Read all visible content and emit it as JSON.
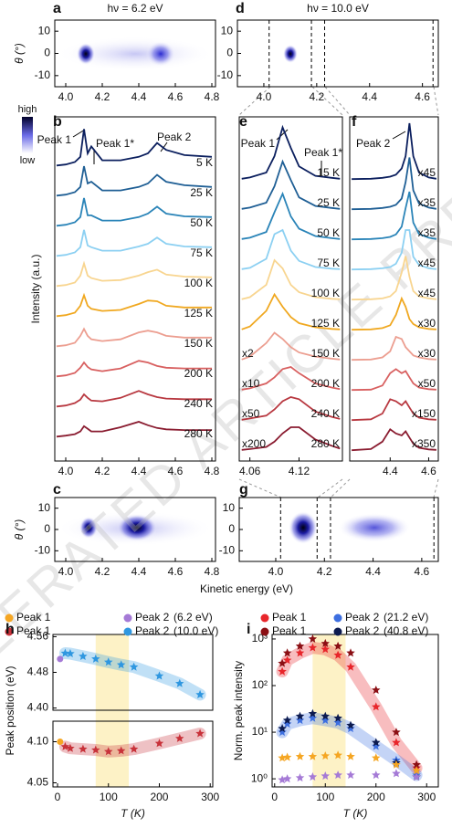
{
  "watermark": "ACCELERATED ARTICLE PREVIEW",
  "colorbar": {
    "high": "high",
    "low": "low"
  },
  "chart_data": [
    {
      "type": "heatmap",
      "label": "a",
      "title": "hν = 6.2 eV",
      "ylabel": "θ (°)",
      "xlim": [
        3.94,
        4.82
      ],
      "xticks": [
        {
          "value": 4,
          "label": "4.0"
        },
        4.2,
        4.4,
        4.6,
        4.8
      ],
      "ylim": [
        -15,
        15
      ],
      "yticks": [
        10,
        0,
        -10
      ]
    },
    {
      "type": "heatmap",
      "label": "d",
      "title": "hν = 10.0 eV",
      "xlim": [
        3.9,
        4.66
      ],
      "xticks": [
        {
          "value": 4,
          "label": "4.0"
        },
        4.2,
        4.4,
        4.6
      ],
      "ylim": [
        -15,
        15
      ],
      "yticks": [
        10,
        0,
        -10
      ],
      "cut_lines": [
        4.02,
        4.18,
        4.23,
        4.64
      ]
    },
    {
      "type": "line",
      "label": "b",
      "ylabel": "Intensity (a.u.)",
      "xlim": [
        3.94,
        4.82
      ],
      "xticks": [
        {
          "value": 4,
          "label": "4.0"
        },
        4.2,
        4.4,
        4.6,
        4.8
      ],
      "annotations": [
        "Peak 1",
        "Peak 1*",
        "Peak 2"
      ],
      "x": [
        3.95,
        4.0,
        4.05,
        4.08,
        4.1,
        4.12,
        4.14,
        4.2,
        4.3,
        4.4,
        4.45,
        4.5,
        4.55,
        4.65,
        4.8
      ],
      "series": [
        {
          "name": "5 K",
          "color": "#0b1f5e",
          "values": [
            0.15,
            0.18,
            0.25,
            0.4,
            1.2,
            0.5,
            0.7,
            0.3,
            0.3,
            0.4,
            0.5,
            0.8,
            0.6,
            0.45,
            0.4
          ]
        },
        {
          "name": "25 K",
          "color": "#1f5f95",
          "values": [
            0.15,
            0.18,
            0.25,
            0.4,
            1.0,
            0.5,
            0.55,
            0.3,
            0.3,
            0.4,
            0.5,
            0.75,
            0.55,
            0.45,
            0.4
          ]
        },
        {
          "name": "50 K",
          "color": "#2a84b8",
          "values": [
            0.15,
            0.18,
            0.25,
            0.4,
            0.95,
            0.45,
            0.45,
            0.3,
            0.3,
            0.4,
            0.5,
            0.7,
            0.5,
            0.42,
            0.4
          ]
        },
        {
          "name": "75 K",
          "color": "#8cd0f2",
          "values": [
            0.15,
            0.18,
            0.25,
            0.4,
            0.9,
            0.45,
            0.4,
            0.3,
            0.3,
            0.42,
            0.5,
            0.68,
            0.5,
            0.42,
            0.4
          ]
        },
        {
          "name": "100 K",
          "color": "#f8d590",
          "values": [
            0.15,
            0.18,
            0.25,
            0.45,
            0.8,
            0.45,
            0.38,
            0.3,
            0.32,
            0.45,
            0.55,
            0.62,
            0.48,
            0.42,
            0.4
          ]
        },
        {
          "name": "125 K",
          "color": "#f0a820",
          "values": [
            0.15,
            0.18,
            0.25,
            0.45,
            0.75,
            0.45,
            0.36,
            0.3,
            0.33,
            0.5,
            0.6,
            0.58,
            0.45,
            0.4,
            0.4
          ]
        },
        {
          "name": "150 K",
          "color": "#ec9e90",
          "values": [
            0.15,
            0.18,
            0.25,
            0.45,
            0.65,
            0.45,
            0.35,
            0.3,
            0.35,
            0.55,
            0.6,
            0.55,
            0.45,
            0.4,
            0.4
          ]
        },
        {
          "name": "200 K",
          "color": "#d86060",
          "values": [
            0.15,
            0.18,
            0.25,
            0.4,
            0.55,
            0.42,
            0.35,
            0.3,
            0.38,
            0.6,
            0.55,
            0.45,
            0.4,
            0.38,
            0.38
          ]
        },
        {
          "name": "240 K",
          "color": "#b83840",
          "values": [
            0.15,
            0.18,
            0.25,
            0.35,
            0.5,
            0.4,
            0.32,
            0.3,
            0.4,
            0.6,
            0.5,
            0.42,
            0.38,
            0.36,
            0.36
          ]
        },
        {
          "name": "280 K",
          "color": "#8a1c30",
          "values": [
            0.15,
            0.18,
            0.22,
            0.3,
            0.45,
            0.38,
            0.3,
            0.3,
            0.42,
            0.58,
            0.48,
            0.4,
            0.36,
            0.34,
            0.34
          ]
        }
      ]
    },
    {
      "type": "line",
      "label": "e",
      "xlim": [
        4.047,
        4.173
      ],
      "xticks": [
        4.06,
        4.12
      ],
      "annotations": [
        "Peak 1",
        "Peak 1*"
      ],
      "x": [
        4.05,
        4.06,
        4.08,
        4.09,
        4.1,
        4.11,
        4.12,
        4.14,
        4.16,
        4.17
      ],
      "series": [
        {
          "name": "15 K",
          "color": "#0b1f5e",
          "values": [
            0.05,
            0.08,
            0.2,
            0.6,
            1.3,
            0.8,
            0.35,
            0.12,
            0.07,
            0.05
          ]
        },
        {
          "name": "25 K",
          "color": "#1f5f95",
          "values": [
            0.05,
            0.08,
            0.2,
            0.6,
            1.2,
            0.75,
            0.33,
            0.12,
            0.07,
            0.05
          ]
        },
        {
          "name": "50 K",
          "color": "#2a84b8",
          "values": [
            0.05,
            0.08,
            0.22,
            0.7,
            1.15,
            0.6,
            0.3,
            0.12,
            0.07,
            0.05
          ]
        },
        {
          "name": "75 K",
          "color": "#8cd0f2",
          "values": [
            0.05,
            0.08,
            0.3,
            0.9,
            1.0,
            0.5,
            0.25,
            0.1,
            0.06,
            0.05
          ]
        },
        {
          "name": "100 K",
          "color": "#f8d590",
          "values": [
            0.05,
            0.1,
            0.4,
            1.0,
            0.8,
            0.4,
            0.22,
            0.1,
            0.06,
            0.05
          ]
        },
        {
          "name": "125 K",
          "color": "#f0a820",
          "values": [
            0.05,
            0.12,
            0.5,
            0.9,
            0.6,
            0.35,
            0.2,
            0.1,
            0.06,
            0.05
          ]
        },
        {
          "name": "150 K",
          "color": "#ec9e90",
          "scale_label": "x2",
          "values": [
            0.05,
            0.12,
            0.45,
            0.7,
            0.55,
            0.35,
            0.22,
            0.12,
            0.07,
            0.05
          ]
        },
        {
          "name": "200 K",
          "color": "#d86060",
          "scale_label": "x10",
          "values": [
            0.05,
            0.08,
            0.2,
            0.35,
            0.55,
            0.6,
            0.45,
            0.2,
            0.1,
            0.06
          ]
        },
        {
          "name": "240 K",
          "color": "#b83840",
          "scale_label": "x50",
          "values": [
            0.05,
            0.08,
            0.15,
            0.3,
            0.5,
            0.6,
            0.55,
            0.25,
            0.12,
            0.07
          ]
        },
        {
          "name": "280 K",
          "color": "#8a1c30",
          "scale_label": "x200",
          "values": [
            0.05,
            0.07,
            0.12,
            0.25,
            0.45,
            0.6,
            0.6,
            0.3,
            0.15,
            0.08
          ]
        }
      ]
    },
    {
      "type": "line",
      "label": "f",
      "xlim": [
        4.19,
        4.65
      ],
      "xticks": [
        4.4,
        4.6
      ],
      "annotations": [
        "Peak 2"
      ],
      "x": [
        4.2,
        4.3,
        4.36,
        4.4,
        4.43,
        4.46,
        4.48,
        4.5,
        4.52,
        4.55,
        4.6,
        4.64
      ],
      "series": [
        {
          "color": "#0b1f5e",
          "scale_label": "x45",
          "values": [
            0.04,
            0.05,
            0.07,
            0.1,
            0.15,
            0.3,
            0.6,
            1.4,
            0.6,
            0.2,
            0.08,
            0.05
          ]
        },
        {
          "color": "#1f5f95",
          "scale_label": "x35",
          "values": [
            0.04,
            0.05,
            0.07,
            0.1,
            0.15,
            0.3,
            0.7,
            1.3,
            0.5,
            0.18,
            0.08,
            0.05
          ]
        },
        {
          "color": "#2a84b8",
          "scale_label": "x35",
          "values": [
            0.04,
            0.05,
            0.07,
            0.1,
            0.16,
            0.35,
            0.8,
            1.2,
            0.45,
            0.17,
            0.08,
            0.05
          ]
        },
        {
          "color": "#8cd0f2",
          "scale_label": "x45",
          "values": [
            0.04,
            0.05,
            0.07,
            0.1,
            0.18,
            0.45,
            1.0,
            1.0,
            0.35,
            0.15,
            0.07,
            0.05
          ]
        },
        {
          "color": "#f8d590",
          "scale_label": "x45",
          "values": [
            0.04,
            0.05,
            0.07,
            0.12,
            0.25,
            0.7,
            1.1,
            0.6,
            0.25,
            0.12,
            0.07,
            0.05
          ]
        },
        {
          "color": "#f0a820",
          "scale_label": "x30",
          "values": [
            0.04,
            0.05,
            0.08,
            0.15,
            0.4,
            0.8,
            0.6,
            0.3,
            0.18,
            0.1,
            0.06,
            0.05
          ]
        },
        {
          "color": "#ec9e90",
          "scale_label": "x30",
          "values": [
            0.04,
            0.05,
            0.1,
            0.25,
            0.6,
            0.55,
            0.35,
            0.25,
            0.15,
            0.1,
            0.06,
            0.05
          ]
        },
        {
          "color": "#d86060",
          "scale_label": "x50",
          "values": [
            0.04,
            0.05,
            0.15,
            0.45,
            0.55,
            0.45,
            0.5,
            0.35,
            0.2,
            0.1,
            0.06,
            0.05
          ]
        },
        {
          "color": "#b83840",
          "scale_label": "x150",
          "values": [
            0.04,
            0.06,
            0.2,
            0.55,
            0.5,
            0.4,
            0.5,
            0.35,
            0.2,
            0.1,
            0.06,
            0.05
          ]
        },
        {
          "color": "#8a1c30",
          "scale_label": "x350",
          "values": [
            0.04,
            0.07,
            0.25,
            0.55,
            0.45,
            0.4,
            0.5,
            0.35,
            0.2,
            0.1,
            0.06,
            0.05
          ]
        }
      ]
    },
    {
      "type": "heatmap",
      "label": "c",
      "ylabel": "θ (°)",
      "xlabel": "Kinetic energy (eV)",
      "xlim": [
        3.94,
        4.82
      ],
      "xticks": [
        {
          "value": 4,
          "label": "4.0"
        },
        4.2,
        4.4,
        4.6,
        4.8
      ],
      "ylim": [
        -15,
        15
      ],
      "yticks": [
        10,
        0,
        -10
      ]
    },
    {
      "type": "heatmap",
      "label": "g",
      "xlim": [
        3.85,
        4.668
      ],
      "xticks": [
        {
          "value": 4,
          "label": "4.0"
        },
        4.2,
        4.4,
        4.6
      ],
      "ylim": [
        -15,
        15
      ],
      "yticks": [
        10,
        0,
        -10
      ],
      "cut_lines": [
        4.02,
        4.17,
        4.225,
        4.65
      ]
    },
    {
      "type": "scatter",
      "label": "h",
      "xlabel": "T (K)",
      "ylabel": "Peak position (eV)",
      "xlim": [
        -9,
        305
      ],
      "xticks": [
        0,
        100,
        200,
        300
      ],
      "shade_x": [
        75,
        140
      ],
      "legend_notes": [
        "(6.2 eV)",
        "(10.0 eV)"
      ],
      "yaxes": [
        {
          "ylim": [
            4.395,
            4.565
          ],
          "yticks": [
            4.56,
            4.48,
            {
              "value": 4.4,
              "label": "4.40"
            }
          ]
        },
        {
          "ylim": [
            4.045,
            4.125
          ],
          "yticks": [
            {
              "value": 4.1,
              "label": "4.10"
            },
            4.05
          ]
        }
      ],
      "series": [
        {
          "name": "Peak 1",
          "color": "#f5a623",
          "marker": "circle",
          "axis": 1,
          "x": [
            5
          ],
          "values": [
            4.1
          ]
        },
        {
          "name": "Peak 2",
          "color": "#a57ad6",
          "marker": "circle",
          "axis": 0,
          "x": [
            5
          ],
          "values": [
            4.51
          ]
        },
        {
          "name": "Peak 1",
          "color": "#c8323a",
          "marker": "star",
          "axis": 1,
          "band": true,
          "x": [
            15,
            25,
            50,
            75,
            100,
            125,
            150,
            200,
            240,
            280
          ],
          "values": [
            4.094,
            4.092,
            4.091,
            4.09,
            4.088,
            4.089,
            4.091,
            4.098,
            4.104,
            4.11
          ]
        },
        {
          "name": "Peak 2",
          "color": "#2f97e0",
          "marker": "star",
          "axis": 0,
          "band": true,
          "x": [
            15,
            25,
            50,
            75,
            100,
            125,
            150,
            200,
            240,
            280
          ],
          "values": [
            4.523,
            4.522,
            4.516,
            4.51,
            4.503,
            4.497,
            4.492,
            4.472,
            4.455,
            4.43
          ]
        }
      ]
    },
    {
      "type": "scatter",
      "label": "i",
      "xlabel": "T (K)",
      "ylabel": "Norm. peak intensity",
      "log_y": true,
      "xlim": [
        -5,
        323
      ],
      "xticks": [
        0,
        100,
        200,
        300
      ],
      "shade_x": [
        75,
        140
      ],
      "ylim": [
        0.67,
        1250
      ],
      "yticks": [
        {
          "value": 1,
          "label": "10⁰"
        },
        {
          "value": 10,
          "label": "10¹"
        },
        {
          "value": 100,
          "label": "10²"
        },
        {
          "value": 1000,
          "label": "10³"
        }
      ],
      "legend_notes": [
        "(21.2 eV)",
        "(40.8 eV)"
      ],
      "series": [
        {
          "name": "Peak 1",
          "color": "#e8262b",
          "marker": "star",
          "band": true,
          "x": [
            15,
            25,
            50,
            75,
            100,
            125,
            150,
            200,
            240,
            280
          ],
          "values": [
            200,
            350,
            500,
            650,
            600,
            450,
            250,
            35,
            6,
            1.7
          ]
        },
        {
          "name": "Peak 2",
          "color": "#3d6fe0",
          "marker": "star",
          "band": true,
          "x": [
            15,
            25,
            50,
            75,
            100,
            125,
            150,
            200,
            240,
            280
          ],
          "values": [
            10,
            15,
            18,
            20,
            18,
            16,
            12,
            5,
            2.5,
            1.2
          ]
        },
        {
          "name": "Peak 1",
          "color": "#8b0f14",
          "marker": "star",
          "x": [
            15,
            25,
            50,
            75,
            100,
            125,
            150,
            200,
            240,
            280
          ],
          "values": [
            300,
            500,
            700,
            1000,
            800,
            700,
            500,
            80,
            10,
            2
          ]
        },
        {
          "name": "Peak 2",
          "color": "#0c1a4f",
          "marker": "star",
          "x": [
            15,
            25,
            50,
            75,
            100,
            125,
            150,
            200,
            240,
            280
          ],
          "values": [
            12,
            18,
            22,
            25,
            22,
            20,
            14,
            6,
            2.2,
            1.1
          ]
        },
        {
          "color": "#f5a623",
          "marker": "star",
          "x": [
            15,
            25,
            50,
            75,
            100,
            125,
            150,
            200,
            240,
            280
          ],
          "values": [
            2.8,
            2.9,
            3,
            3,
            3.1,
            3.2,
            3,
            2.8,
            2,
            1.5
          ]
        },
        {
          "color": "#a57ad6",
          "marker": "star",
          "x": [
            15,
            25,
            50,
            75,
            100,
            125,
            150,
            200,
            240,
            280
          ],
          "values": [
            0.95,
            1,
            1.05,
            1.1,
            1.15,
            1.2,
            1.2,
            1.2,
            1.3,
            1.1
          ]
        }
      ]
    }
  ]
}
